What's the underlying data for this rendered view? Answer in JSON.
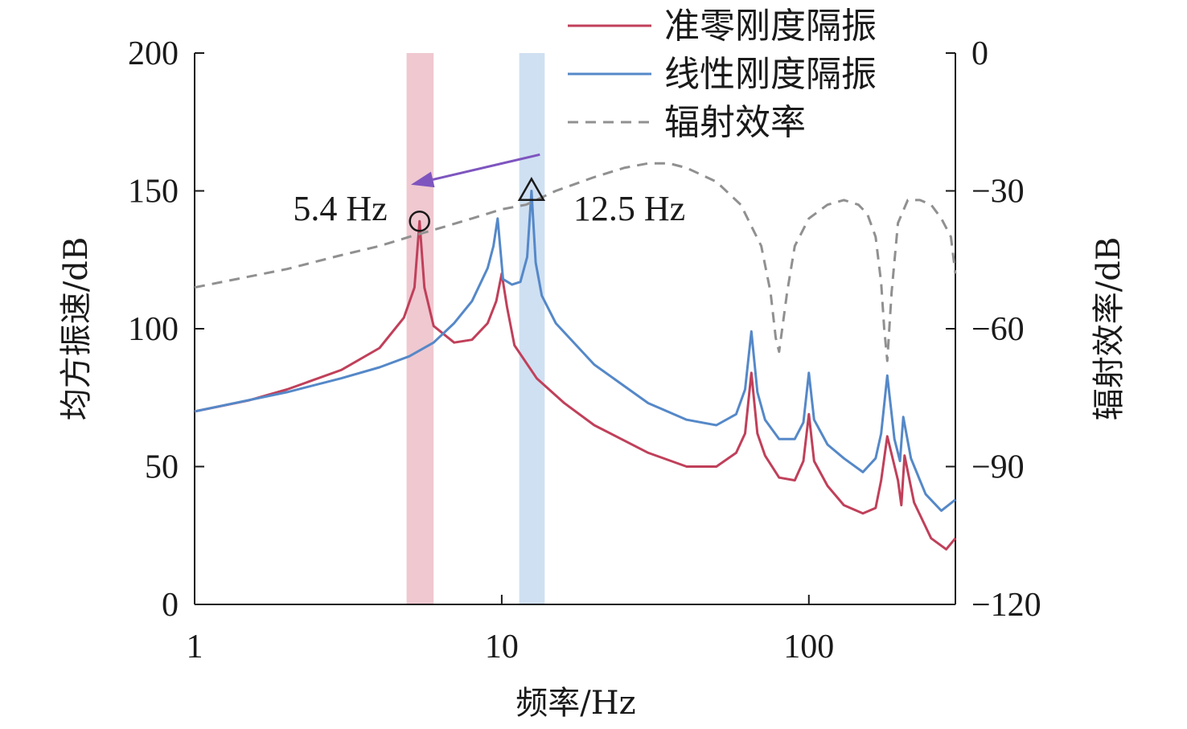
{
  "chart_data": {
    "type": "line",
    "xlabel": "频率/Hz",
    "ylabel_left": "均方振速/dB",
    "ylabel_right": "辐射效率/dB",
    "xscale": "log",
    "xlim": [
      1,
      300
    ],
    "ylim_left": [
      0,
      200
    ],
    "ylim_right": [
      -120,
      0
    ],
    "xticks": [
      1,
      10,
      100
    ],
    "xtick_labels": [
      "1",
      "10",
      "100"
    ],
    "yticks_left": [
      0,
      50,
      100,
      150,
      200
    ],
    "ytick_labels_left": [
      "0",
      "50",
      "100",
      "150",
      "200"
    ],
    "yticks_right": [
      -120,
      -90,
      -60,
      -30,
      0
    ],
    "ytick_labels_right": [
      "−120",
      "−90",
      "−60",
      "−30",
      "0"
    ],
    "legend_position": "top-right",
    "series": [
      {
        "name": "准零刚度隔振",
        "axis": "left",
        "color": "#c0405a",
        "style": "solid",
        "x": [
          1,
          1.5,
          2,
          3,
          4,
          4.8,
          5.2,
          5.4,
          5.6,
          6,
          7,
          8,
          9,
          9.6,
          10,
          10.4,
          11,
          13,
          16,
          20,
          30,
          40,
          50,
          58,
          62,
          65,
          68,
          72,
          80,
          90,
          96,
          100,
          104,
          115,
          130,
          150,
          165,
          172,
          180,
          195,
          200,
          205,
          220,
          250,
          280,
          300
        ],
        "y": [
          70,
          74,
          78,
          85,
          93,
          104,
          115,
          139,
          115,
          101,
          95,
          96,
          102,
          110,
          120,
          108,
          94,
          82,
          73,
          65,
          55,
          50,
          50,
          55,
          62,
          84,
          62,
          54,
          46,
          45,
          52,
          69,
          52,
          43,
          36,
          33,
          35,
          45,
          61,
          45,
          36,
          54,
          37,
          24,
          20,
          24
        ]
      },
      {
        "name": "线性刚度隔振",
        "axis": "left",
        "color": "#5588c8",
        "style": "solid",
        "x": [
          1,
          2,
          3,
          4,
          5,
          6,
          7,
          8,
          9,
          9.4,
          9.7,
          10.1,
          10.8,
          11.5,
          12.1,
          12.5,
          12.9,
          13.5,
          15,
          20,
          30,
          40,
          50,
          58,
          62,
          65,
          68,
          72,
          80,
          90,
          96,
          100,
          104,
          115,
          130,
          150,
          165,
          172,
          180,
          190,
          198,
          203,
          215,
          240,
          270,
          300
        ],
        "y": [
          70,
          77,
          82,
          86,
          90,
          95,
          102,
          110,
          122,
          130,
          140,
          118,
          116,
          117,
          126,
          150,
          124,
          112,
          102,
          87,
          73,
          67,
          65,
          69,
          78,
          99,
          77,
          67,
          60,
          60,
          66,
          84,
          67,
          58,
          53,
          48,
          53,
          62,
          83,
          60,
          52,
          68,
          53,
          40,
          34,
          38
        ]
      },
      {
        "name": "辐射效率",
        "axis": "right",
        "color": "#909090",
        "style": "dashed",
        "x": [
          1,
          2,
          3,
          4,
          5,
          6,
          8,
          10,
          12,
          15,
          20,
          25,
          30,
          35,
          40,
          50,
          60,
          70,
          75,
          78,
          80,
          85,
          90,
          100,
          115,
          130,
          145,
          155,
          165,
          172,
          176,
          180,
          186,
          195,
          210,
          230,
          250,
          270,
          290,
          300
        ],
        "y": [
          -51,
          -47,
          -44,
          -42,
          -40,
          -38.5,
          -36,
          -34,
          -33,
          -30,
          -27,
          -25,
          -24,
          -24,
          -25,
          -28,
          -33,
          -42,
          -52,
          -62,
          -65,
          -52,
          -42,
          -36,
          -33,
          -32,
          -33,
          -35,
          -40,
          -50,
          -60,
          -67,
          -52,
          -37,
          -32,
          -32,
          -33,
          -36,
          -40,
          -48
        ]
      }
    ],
    "highlights": [
      {
        "label": "5.4 Hz",
        "from": 4.9,
        "to": 6.0,
        "center": 5.4,
        "color": "#efc8d0",
        "marker": "circle",
        "marker_y": 139
      },
      {
        "label": "12.5 Hz",
        "from": 11.4,
        "to": 13.8,
        "center": 12.5,
        "color": "#cfe0f2",
        "marker": "triangle",
        "marker_y": 150
      }
    ],
    "arrow": {
      "color": "#7e55bf",
      "from": [
        13.8,
        155
      ],
      "to": [
        5.0,
        154
      ]
    }
  }
}
